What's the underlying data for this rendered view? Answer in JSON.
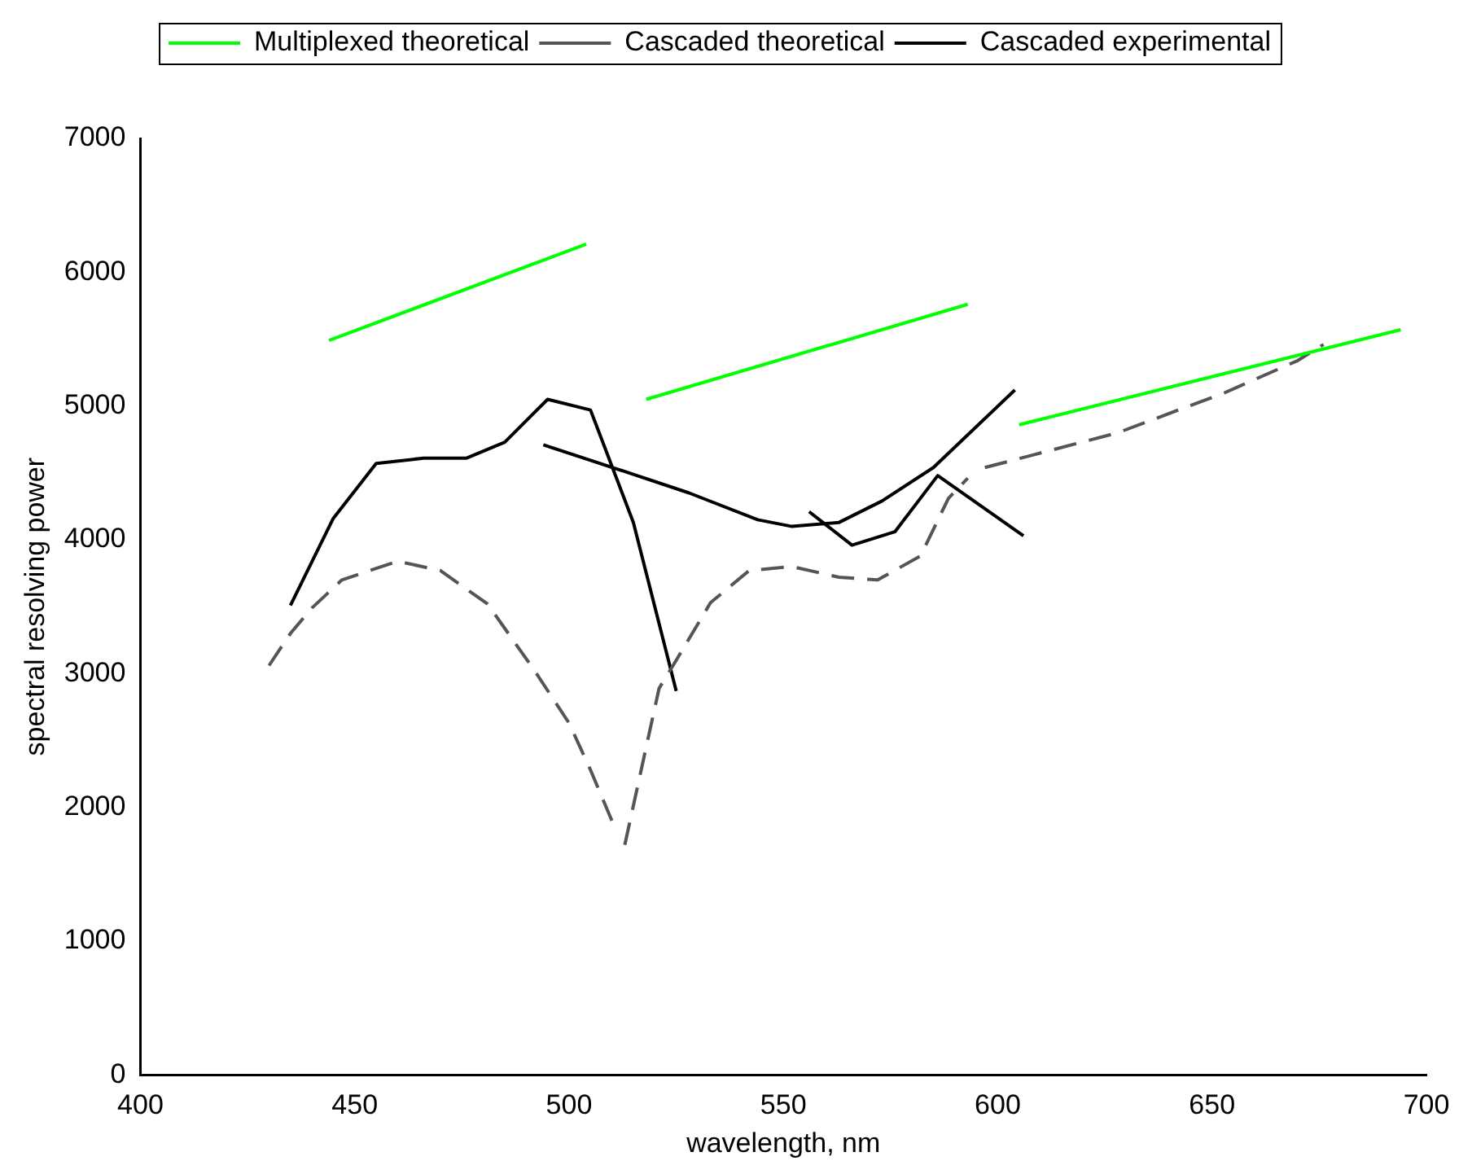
{
  "chart_data": {
    "type": "line",
    "xlabel": "wavelength, nm",
    "ylabel": "spectral resolving power",
    "xlim": [
      400,
      700
    ],
    "xticks": [
      400,
      450,
      500,
      550,
      600,
      650,
      700
    ],
    "ylim": [
      0,
      7000
    ],
    "yticks": [
      0,
      1000,
      2000,
      3000,
      4000,
      5000,
      6000,
      7000
    ],
    "grid": false,
    "legend": "top",
    "marker": "none",
    "line_style": "solid",
    "series": [
      {
        "name": "Multiplexed theoretical",
        "color": "#00ff00",
        "x": [
          444,
          504,
          null,
          518,
          593,
          null,
          605,
          694
        ],
        "values": [
          5490,
          6210,
          null,
          5050,
          5760,
          null,
          4860,
          5570
        ]
      },
      {
        "name": "Cascaded theoretical",
        "color": "#555555",
        "line_style": "dashed",
        "x": [
          430,
          435,
          440,
          447,
          460,
          470,
          481,
          492,
          500,
          505,
          510,
          null,
          513,
          521,
          525,
          533,
          542,
          552,
          563,
          572,
          582,
          588.5,
          593,
          null,
          597,
          628,
          653,
          670,
          676
        ],
        "values": [
          3060,
          3300,
          3490,
          3700,
          3840,
          3770,
          3520,
          3020,
          2630,
          2280,
          1900,
          null,
          1720,
          2890,
          3100,
          3530,
          3770,
          3800,
          3720,
          3700,
          3880,
          4310,
          4460,
          null,
          4540,
          4800,
          5100,
          5340,
          5460
        ]
      },
      {
        "name": "Cascaded experimental",
        "color": "#000000",
        "x": [
          435,
          445,
          455,
          466,
          476,
          485,
          495,
          505,
          515,
          525,
          null,
          494,
          513,
          528,
          544,
          552,
          563,
          573,
          585,
          604,
          null,
          556,
          566,
          576,
          586,
          606
        ],
        "values": [
          3510,
          4160,
          4570,
          4610,
          4610,
          4730,
          5050,
          4970,
          4130,
          2870,
          null,
          4710,
          4510,
          4350,
          4150,
          4100,
          4130,
          4290,
          4540,
          5120,
          null,
          4210,
          3960,
          4060,
          4480,
          4030
        ]
      }
    ]
  }
}
